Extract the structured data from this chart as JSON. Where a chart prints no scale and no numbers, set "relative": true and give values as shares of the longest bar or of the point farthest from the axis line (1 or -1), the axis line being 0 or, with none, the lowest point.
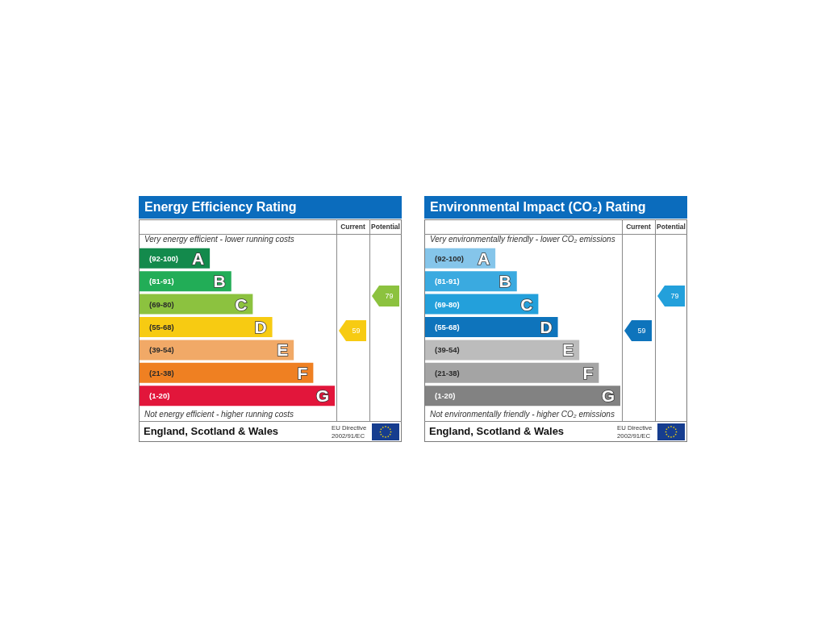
{
  "chart_data": [
    {
      "type": "bar",
      "orientation": "horizontal",
      "relative": true,
      "title": "Energy Efficiency Rating",
      "categories": [
        "(92-100)",
        "(81-91)",
        "(69-80)",
        "(55-68)",
        "(39-54)",
        "(21-38)",
        "(1-20)"
      ],
      "values": [
        0.36,
        0.47,
        0.58,
        0.68,
        0.79,
        0.89,
        1
      ],
      "colors": [
        "#138a4c",
        "#22ad57",
        "#8cc23f",
        "#f7cb12",
        "#f1a967",
        "#ef8022",
        "#e2163b"
      ],
      "annotations": [
        "Very energy efficient - lower running costs",
        "Not energy efficient - higher running costs",
        "Current",
        "Potential",
        "England, Scotland & Wales",
        "EU Directive 2002/91/EC",
        "59",
        "79",
        {
          "text": "A",
          "x": 0.36,
          "y": "(92-100)"
        },
        {
          "text": "B",
          "x": 0.47,
          "y": "(81-91)"
        },
        {
          "text": "C",
          "x": 0.58,
          "y": "(69-80)"
        },
        {
          "text": "D",
          "x": 0.68,
          "y": "(55-68)"
        },
        {
          "text": "E",
          "x": 0.79,
          "y": "(39-54)"
        },
        {
          "text": "F",
          "x": 0.89,
          "y": "(21-38)"
        },
        {
          "text": "G",
          "x": 1,
          "y": "(1-20)"
        }
      ]
    },
    {
      "type": "bar",
      "orientation": "horizontal",
      "relative": true,
      "title": "Environmental Impact (CO₂) Rating",
      "categories": [
        "(92-100)",
        "(81-91)",
        "(69-80)",
        "(55-68)",
        "(39-54)",
        "(21-38)",
        "(1-20)"
      ],
      "values": [
        0.36,
        0.47,
        0.58,
        0.68,
        0.79,
        0.89,
        1
      ],
      "colors": [
        "#85c5ea",
        "#3aaae0",
        "#23a0db",
        "#0e74bc",
        "#bcbcbc",
        "#a4a4a4",
        "#828282"
      ],
      "annotations": [
        "Very environmentally friendly - lower CO₂ emissions",
        "Not environmentally friendly - higher CO₂ emissions",
        "Current",
        "Potential",
        "England, Scotland & Wales",
        "EU Directive 2002/91/EC",
        "59",
        "79",
        {
          "text": "A",
          "x": 0.36,
          "y": "(92-100)"
        },
        {
          "text": "B",
          "x": 0.47,
          "y": "(81-91)"
        },
        {
          "text": "C",
          "x": 0.58,
          "y": "(69-80)"
        },
        {
          "text": "D",
          "x": 0.68,
          "y": "(55-68)"
        },
        {
          "text": "E",
          "x": 0.79,
          "y": "(39-54)"
        },
        {
          "text": "F",
          "x": 0.89,
          "y": "(21-38)"
        },
        {
          "text": "G",
          "x": 1,
          "y": "(1-20)"
        }
      ]
    }
  ]
}
